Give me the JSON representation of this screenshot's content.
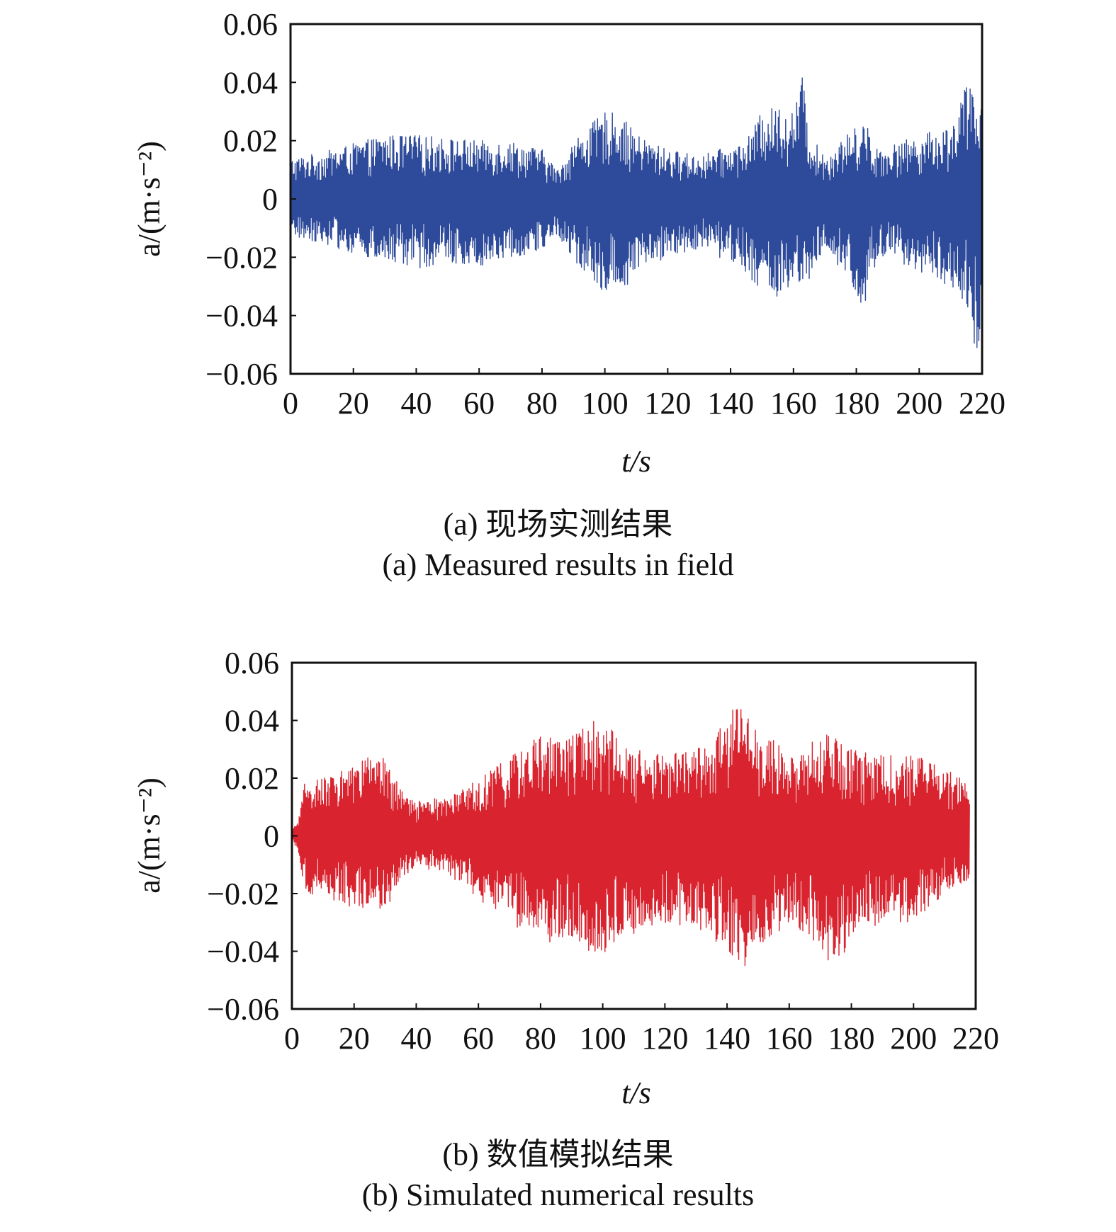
{
  "chart_data": [
    {
      "type": "line",
      "xlabel": "t/s",
      "ylabel": "a/(m·s⁻²)",
      "xlim": [
        0,
        220
      ],
      "ylim": [
        -0.06,
        0.06
      ],
      "xticks": [
        0,
        20,
        40,
        60,
        80,
        100,
        120,
        140,
        160,
        180,
        200,
        220
      ],
      "yticks": [
        0.06,
        0.04,
        0.02,
        0,
        -0.02,
        -0.04,
        -0.06
      ],
      "ytick_labels": [
        "0.06",
        "0.04",
        "0.02",
        "0",
        "−0.02",
        "−0.04",
        "−0.06"
      ],
      "color": "#2e4a9a",
      "grid": false,
      "caption_cn": "(a) 现场实测结果",
      "caption_en": "(a) Measured results in field",
      "series": [
        {
          "x": [
            0,
            10,
            20,
            30,
            40,
            50,
            60,
            70,
            80,
            85,
            90,
            100,
            105,
            110,
            120,
            130,
            140,
            145,
            150,
            155,
            160,
            163,
            165,
            170,
            175,
            180,
            183,
            185,
            190,
            200,
            210,
            215,
            218,
            220
          ],
          "upper": [
            0.014,
            0.016,
            0.019,
            0.022,
            0.022,
            0.021,
            0.02,
            0.02,
            0.017,
            0.01,
            0.02,
            0.03,
            0.029,
            0.022,
            0.017,
            0.015,
            0.018,
            0.02,
            0.03,
            0.032,
            0.03,
            0.043,
            0.022,
            0.015,
            0.02,
            0.025,
            0.028,
            0.018,
            0.018,
            0.022,
            0.025,
            0.04,
            0.035,
            0.032
          ],
          "lower": [
            -0.013,
            -0.015,
            -0.019,
            -0.022,
            -0.024,
            -0.022,
            -0.023,
            -0.02,
            -0.018,
            -0.012,
            -0.022,
            -0.032,
            -0.033,
            -0.025,
            -0.02,
            -0.017,
            -0.022,
            -0.025,
            -0.033,
            -0.034,
            -0.033,
            -0.033,
            -0.028,
            -0.018,
            -0.025,
            -0.033,
            -0.04,
            -0.025,
            -0.02,
            -0.025,
            -0.03,
            -0.037,
            -0.055,
            -0.042
          ]
        }
      ]
    },
    {
      "type": "line",
      "xlabel": "t/s",
      "ylabel": "a/(m·s⁻²)",
      "xlim": [
        0,
        220
      ],
      "ylim": [
        -0.06,
        0.06
      ],
      "xticks": [
        0,
        20,
        40,
        60,
        80,
        100,
        120,
        140,
        160,
        180,
        200,
        220
      ],
      "yticks": [
        0.06,
        0.04,
        0.02,
        0,
        -0.02,
        -0.04,
        -0.06
      ],
      "ytick_labels": [
        "0.06",
        "0.04",
        "0.02",
        "0",
        "−0.02",
        "−0.04",
        "−0.06"
      ],
      "color": "#d9232e",
      "grid": false,
      "caption_cn": "(b) 数值模拟结果",
      "caption_en": "(b) Simulated numerical results",
      "series": [
        {
          "x": [
            0,
            2,
            4,
            10,
            20,
            25,
            30,
            35,
            40,
            45,
            50,
            60,
            70,
            80,
            90,
            95,
            100,
            110,
            120,
            130,
            140,
            143,
            146,
            150,
            160,
            170,
            175,
            180,
            190,
            200,
            210,
            218
          ],
          "upper": [
            0.002,
            0.005,
            0.018,
            0.02,
            0.024,
            0.028,
            0.027,
            0.016,
            0.012,
            0.013,
            0.013,
            0.02,
            0.027,
            0.035,
            0.035,
            0.043,
            0.04,
            0.032,
            0.028,
            0.03,
            0.04,
            0.048,
            0.045,
            0.038,
            0.028,
            0.035,
            0.035,
            0.03,
            0.028,
            0.028,
            0.025,
            0.017
          ],
          "lower": [
            -0.002,
            -0.005,
            -0.02,
            -0.021,
            -0.025,
            -0.027,
            -0.026,
            -0.016,
            -0.011,
            -0.012,
            -0.013,
            -0.022,
            -0.03,
            -0.038,
            -0.035,
            -0.04,
            -0.042,
            -0.035,
            -0.03,
            -0.032,
            -0.04,
            -0.046,
            -0.045,
            -0.04,
            -0.03,
            -0.038,
            -0.048,
            -0.035,
            -0.03,
            -0.03,
            -0.02,
            -0.015
          ]
        }
      ]
    }
  ]
}
